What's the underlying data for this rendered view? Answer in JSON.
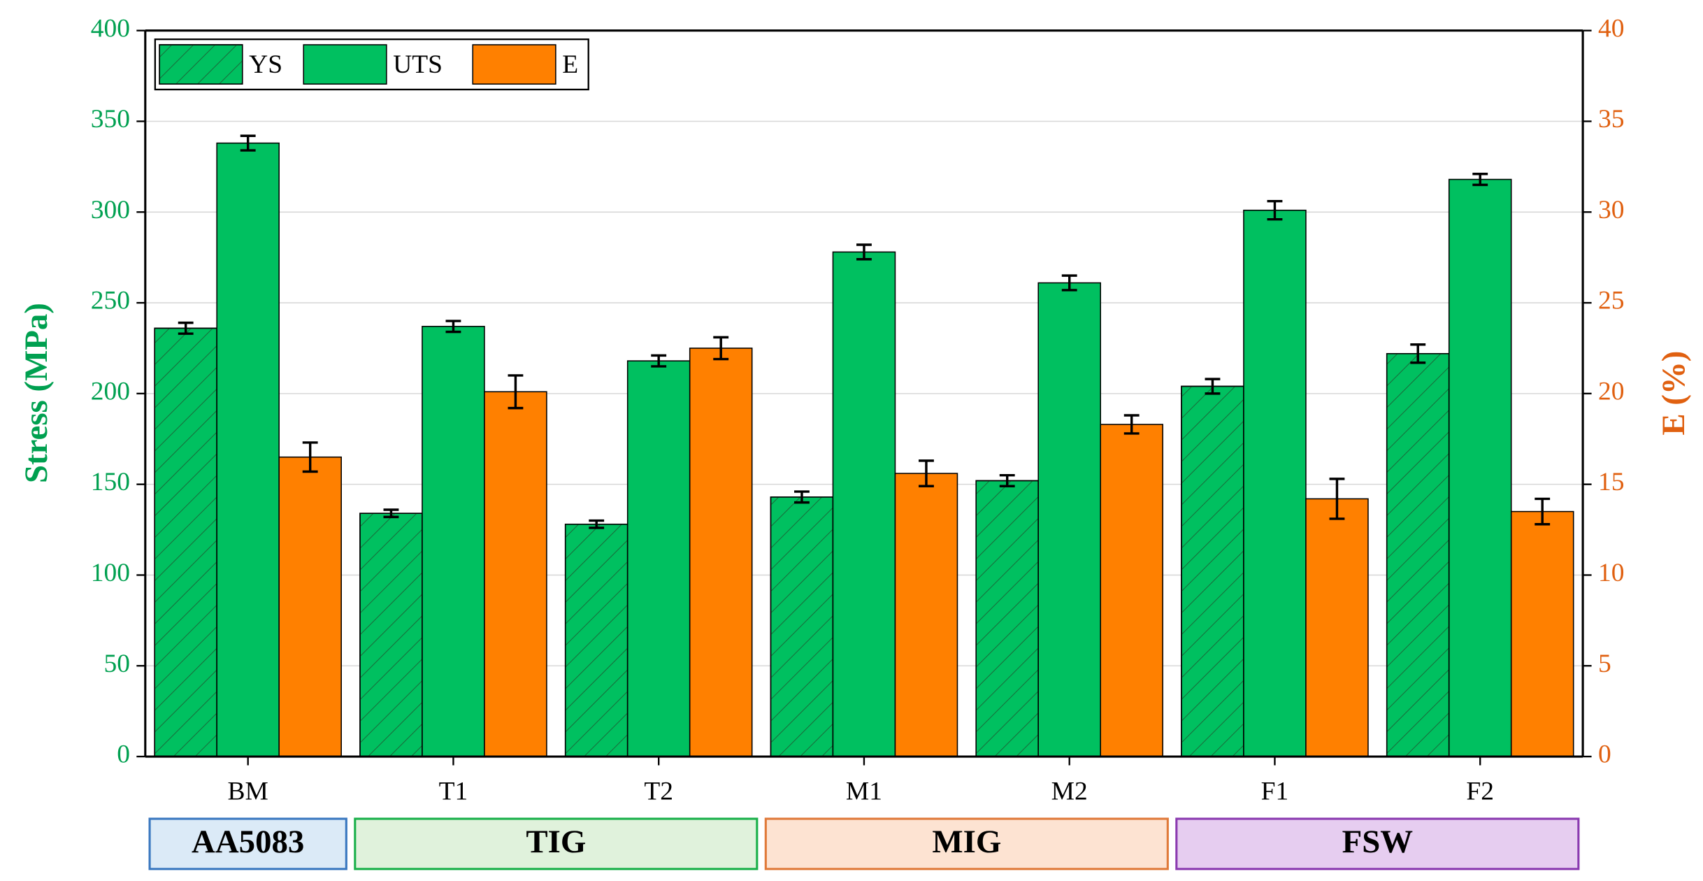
{
  "chart_data": {
    "type": "bar",
    "y_label": "Stress (MPa)",
    "y2_label": "E (%)",
    "categories": [
      "BM",
      "T1",
      "T2",
      "M1",
      "M2",
      "F1",
      "F2"
    ],
    "series": [
      {
        "name": "YS",
        "color": "#00c060",
        "pattern": "hatch",
        "axis": "y",
        "values": [
          236,
          134,
          128,
          143,
          152,
          204,
          222
        ],
        "errors": [
          3,
          2,
          2,
          3,
          3,
          4,
          5
        ]
      },
      {
        "name": "UTS",
        "color": "#00c060",
        "axis": "y",
        "values": [
          338,
          237,
          218,
          278,
          261,
          301,
          318
        ],
        "errors": [
          4,
          3,
          3,
          4,
          4,
          5,
          3
        ]
      },
      {
        "name": "E",
        "color": "#ff8000",
        "axis": "y2",
        "values": [
          16.5,
          20.1,
          22.5,
          15.6,
          18.3,
          14.2,
          13.5
        ],
        "errors": [
          0.8,
          0.9,
          0.6,
          0.7,
          0.5,
          1.1,
          0.7
        ]
      }
    ],
    "ylim": [
      0,
      400
    ],
    "yticks": [
      0,
      50,
      100,
      150,
      200,
      250,
      300,
      350,
      400
    ],
    "y2lim": [
      0,
      40
    ],
    "y2ticks": [
      0,
      5,
      10,
      15,
      20,
      25,
      30,
      35,
      40
    ],
    "y_color": "#00a050",
    "y2_color": "#e06010",
    "grid": true,
    "legend": "top-left",
    "groups": [
      {
        "label": "AA5083",
        "members": [
          "BM"
        ],
        "fill": "#dbeaf7",
        "stroke": "#3a78c0"
      },
      {
        "label": "TIG",
        "members": [
          "T1",
          "T2"
        ],
        "fill": "#e0f2dc",
        "stroke": "#1ab04a"
      },
      {
        "label": "MIG",
        "members": [
          "M1",
          "M2"
        ],
        "fill": "#fde3d2",
        "stroke": "#e07a3a"
      },
      {
        "label": "FSW",
        "members": [
          "F1",
          "F2"
        ],
        "fill": "#e6cdf0",
        "stroke": "#8a3ab0"
      }
    ]
  }
}
